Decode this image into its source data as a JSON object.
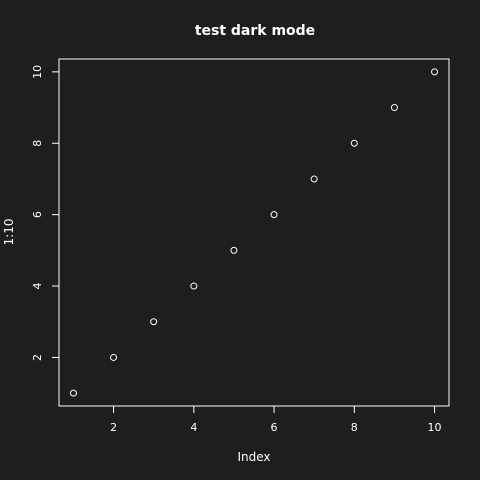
{
  "chart_data": {
    "type": "scatter",
    "title": "test dark mode",
    "xlabel": "Index",
    "ylabel": "1:10",
    "x": [
      1,
      2,
      3,
      4,
      5,
      6,
      7,
      8,
      9,
      10
    ],
    "y": [
      1,
      2,
      3,
      4,
      5,
      6,
      7,
      8,
      9,
      10
    ],
    "xlim": [
      0.64,
      10.36
    ],
    "ylim": [
      0.64,
      10.36
    ],
    "x_ticks": [
      "2",
      "4",
      "6",
      "8",
      "10"
    ],
    "y_ticks": [
      "2",
      "4",
      "6",
      "8",
      "10"
    ],
    "grid": false,
    "legend": "none",
    "colors": {
      "background": "#1e1e1e",
      "foreground": "#ffffff",
      "points": "#ffffff"
    }
  }
}
